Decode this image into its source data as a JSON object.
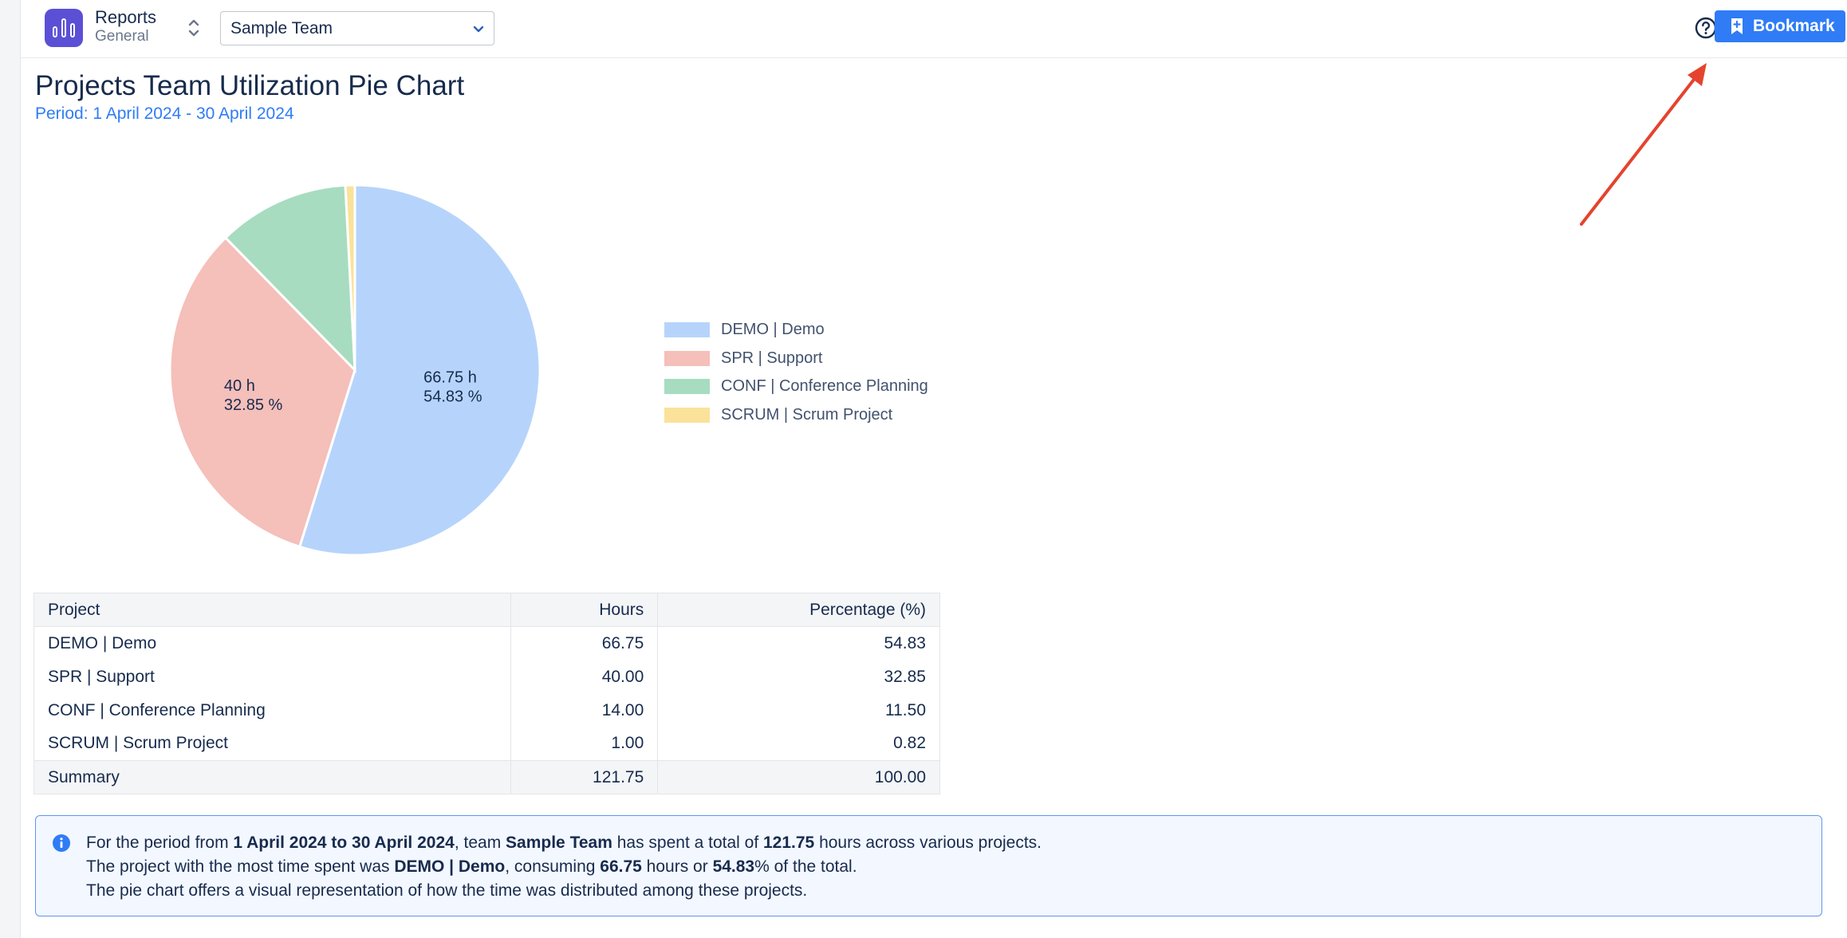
{
  "header": {
    "app_title": "Reports",
    "app_subtitle": "General",
    "team_select_value": "Sample Team",
    "bookmark_label": "Bookmark"
  },
  "page": {
    "title": "Projects Team Utilization Pie Chart",
    "period": "Period: 1 April 2024 - 30 April 2024"
  },
  "chart_data": {
    "type": "pie",
    "categories": [
      "DEMO | Demo",
      "SPR | Support",
      "CONF | Conference Planning",
      "SCRUM | Scrum Project"
    ],
    "values": [
      66.75,
      40,
      14,
      1
    ],
    "percentages": [
      54.83,
      32.85,
      11.5,
      0.82
    ],
    "colors": [
      "#b6d4fb",
      "#f5bfba",
      "#a7dcc0",
      "#fbe29a"
    ],
    "data_labels": [
      {
        "hours": "66.75 h",
        "pct": "54.83 %"
      },
      {
        "hours": "40 h",
        "pct": "32.85 %"
      }
    ],
    "legend_placement": "right"
  },
  "table": {
    "headers": {
      "project": "Project",
      "hours": "Hours",
      "percentage": "Percentage (%)"
    },
    "rows": [
      {
        "project": "DEMO | Demo",
        "hours": "66.75",
        "percentage": "54.83"
      },
      {
        "project": "SPR | Support",
        "hours": "40.00",
        "percentage": "32.85"
      },
      {
        "project": "CONF | Conference Planning",
        "hours": "14.00",
        "percentage": "11.50"
      },
      {
        "project": "SCRUM | Scrum Project",
        "hours": "1.00",
        "percentage": "0.82"
      }
    ],
    "summary": {
      "label": "Summary",
      "hours": "121.75",
      "percentage": "100.00"
    }
  },
  "info": {
    "l1_a": "For the period from ",
    "l1_b": "1 April 2024 to 30 April 2024",
    "l1_c": ", team ",
    "l1_d": "Sample Team",
    "l1_e": " has spent a total of ",
    "l1_f": "121.75",
    "l1_g": " hours across various projects.",
    "l2_a": "The project with the most time spent was ",
    "l2_b": "DEMO | Demo",
    "l2_c": ", consuming ",
    "l2_d": "66.75",
    "l2_e": " hours or ",
    "l2_f": "54.83",
    "l2_g": "% of the total.",
    "l3": "The pie chart offers a visual representation of how the time was distributed among these projects."
  },
  "colors": {
    "accent": "#2f7cf6",
    "app_icon": "#5b4fd6",
    "annotation_arrow": "#e5432d"
  }
}
